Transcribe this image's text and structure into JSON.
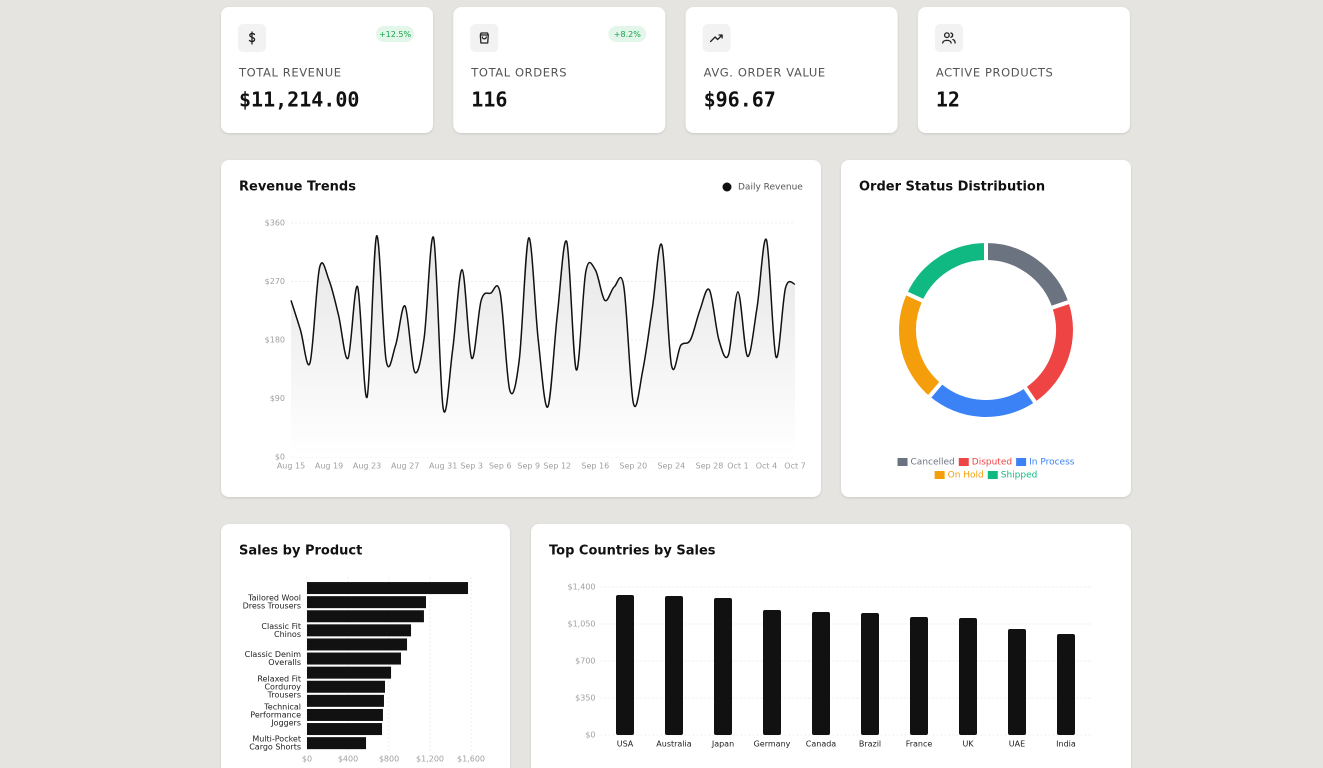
{
  "stats": [
    {
      "label": "TOTAL REVENUE",
      "value": "$11,214.00",
      "change": "+12.5%"
    },
    {
      "label": "TOTAL ORDERS",
      "value": "116",
      "change": "+8.2%"
    },
    {
      "label": "AVG. ORDER VALUE",
      "value": "$96.67"
    },
    {
      "label": "ACTIVE PRODUCTS",
      "value": "12"
    }
  ],
  "chart_data": [
    {
      "type": "line",
      "title": "Revenue Trends",
      "categories": [
        "Aug 15",
        null,
        null,
        null,
        "Aug 19",
        null,
        null,
        null,
        "Aug 23",
        null,
        null,
        null,
        "Aug 27",
        null,
        null,
        null,
        "Aug 31",
        null,
        null,
        "Sep 3",
        null,
        null,
        "Sep 6",
        null,
        null,
        "Sep 9",
        null,
        null,
        "Sep 12",
        null,
        null,
        null,
        "Sep 16",
        null,
        null,
        null,
        "Sep 20",
        null,
        null,
        null,
        "Sep 24",
        null,
        null,
        null,
        "Sep 28",
        null,
        null,
        "Oct 1",
        null,
        null,
        "Oct 4",
        null,
        null,
        "Oct 7"
      ],
      "series": [
        {
          "name": "Daily Revenue",
          "color": "#111111",
          "values": [
            241,
            195,
            145,
            291,
            272,
            218,
            152,
            262,
            92,
            340,
            149,
            172,
            232,
            131,
            183,
            337,
            75,
            165,
            288,
            152,
            241,
            252,
            252,
            103,
            149,
            337,
            180,
            77,
            218,
            331,
            134,
            285,
            288,
            241,
            262,
            262,
            83,
            134,
            229,
            326,
            142,
            172,
            180,
            226,
            257,
            180,
            157,
            254,
            155,
            229,
            334,
            154,
            260,
            266
          ]
        }
      ],
      "ylim": [
        0,
        360
      ],
      "yticks": [
        {
          "value": 0,
          "label": "$0"
        },
        {
          "value": 90,
          "label": "$90"
        },
        {
          "value": 180,
          "label": "$180"
        },
        {
          "value": 270,
          "label": "$270"
        },
        {
          "value": 360,
          "label": "$360"
        }
      ],
      "grid": true
    },
    {
      "type": "doughnut",
      "title": "Order Status Distribution",
      "categories": [
        "Cancelled",
        "Disputed",
        "In Process",
        "On Hold",
        "Shipped"
      ],
      "values": [
        23,
        24,
        24,
        24,
        21
      ],
      "colors": [
        "#6b7280",
        "#ef4444",
        "#3b82f6",
        "#f59e0b",
        "#10b981"
      ]
    },
    {
      "type": "barh",
      "title": "Sales by Product",
      "categories": [
        null,
        [
          "Tailored Wool",
          "Dress Trousers"
        ],
        null,
        [
          "Classic Fit",
          "Chinos"
        ],
        null,
        [
          "Classic Denim",
          "Overalls"
        ],
        null,
        [
          "Relaxed Fit",
          "Corduroy",
          "Trousers"
        ],
        null,
        [
          "Technical",
          "Performance",
          "Joggers"
        ],
        null,
        [
          "Multi-Pocket",
          "Cargo Shorts"
        ]
      ],
      "values": [
        1571,
        1161,
        1141,
        1015,
        976,
        917,
        820,
        761,
        751,
        741,
        732,
        576
      ],
      "color": "#111111",
      "xlim": [
        0,
        1600
      ],
      "xticks": [
        {
          "value": 0,
          "label": "$0"
        },
        {
          "value": 400,
          "label": "$400"
        },
        {
          "value": 800,
          "label": "$800"
        },
        {
          "value": 1200,
          "label": "$1,200"
        },
        {
          "value": 1600,
          "label": "$1,600"
        }
      ],
      "grid": true
    },
    {
      "type": "bar",
      "title": "Top Countries by Sales",
      "categories": [
        "USA",
        "Australia",
        "Japan",
        "Germany",
        "Canada",
        "Brazil",
        "France",
        "UK",
        "UAE",
        "India"
      ],
      "values": [
        1324,
        1315,
        1296,
        1182,
        1164,
        1154,
        1116,
        1107,
        1003,
        955
      ],
      "color": "#111111",
      "ylim": [
        0,
        1400
      ],
      "yticks": [
        {
          "value": 0,
          "label": "$0"
        },
        {
          "value": 350,
          "label": "$350"
        },
        {
          "value": 700,
          "label": "$700"
        },
        {
          "value": 1050,
          "label": "$1,050"
        },
        {
          "value": 1400,
          "label": "$1,400"
        }
      ],
      "grid": true
    }
  ]
}
